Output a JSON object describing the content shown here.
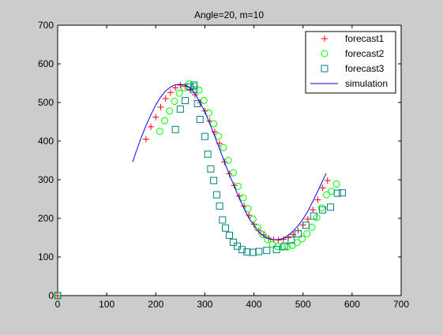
{
  "chart_data": {
    "type": "scatter",
    "title": "Angle=20, m=10",
    "xlabel": "",
    "ylabel": "",
    "xlim": [
      0,
      700
    ],
    "ylim": [
      0,
      700
    ],
    "xticks": [
      "0",
      "100",
      "200",
      "300",
      "400",
      "500",
      "600",
      "700"
    ],
    "yticks": [
      "0",
      "100",
      "200",
      "300",
      "400",
      "500",
      "600",
      "700"
    ],
    "grid": false,
    "legend_position": "top-right",
    "series": [
      {
        "name": "forecast1",
        "marker": "plus",
        "color": "#ff0000",
        "points": [
          [
            0,
            0
          ],
          [
            180,
            405
          ],
          [
            190,
            437
          ],
          [
            200,
            462
          ],
          [
            210,
            488
          ],
          [
            220,
            510
          ],
          [
            230,
            526
          ],
          [
            240,
            538
          ],
          [
            250,
            545
          ],
          [
            260,
            542
          ],
          [
            270,
            534
          ],
          [
            280,
            520
          ],
          [
            290,
            500
          ],
          [
            300,
            478
          ],
          [
            310,
            452
          ],
          [
            320,
            424
          ],
          [
            330,
            394
          ],
          [
            340,
            346
          ],
          [
            350,
            315
          ],
          [
            360,
            285
          ],
          [
            370,
            258
          ],
          [
            380,
            232
          ],
          [
            390,
            208
          ],
          [
            400,
            185
          ],
          [
            410,
            168
          ],
          [
            420,
            157
          ],
          [
            430,
            149
          ],
          [
            440,
            145
          ],
          [
            450,
            144
          ],
          [
            460,
            146
          ],
          [
            470,
            150
          ],
          [
            480,
            158
          ],
          [
            490,
            168
          ],
          [
            500,
            183
          ],
          [
            510,
            198
          ],
          [
            520,
            222
          ],
          [
            530,
            248
          ],
          [
            540,
            279
          ],
          [
            550,
            298
          ]
        ]
      },
      {
        "name": "forecast2",
        "marker": "circle",
        "color": "#00ff00",
        "points": [
          [
            0,
            0
          ],
          [
            208,
            425
          ],
          [
            218,
            453
          ],
          [
            228,
            478
          ],
          [
            238,
            503
          ],
          [
            248,
            524
          ],
          [
            258,
            538
          ],
          [
            268,
            548
          ],
          [
            278,
            542
          ],
          [
            288,
            532
          ],
          [
            298,
            505
          ],
          [
            308,
            473
          ],
          [
            318,
            445
          ],
          [
            328,
            413
          ],
          [
            338,
            383
          ],
          [
            348,
            350
          ],
          [
            358,
            318
          ],
          [
            368,
            283
          ],
          [
            378,
            253
          ],
          [
            388,
            225
          ],
          [
            398,
            198
          ],
          [
            408,
            176
          ],
          [
            418,
            158
          ],
          [
            428,
            145
          ],
          [
            438,
            132
          ],
          [
            448,
            127
          ],
          [
            458,
            125
          ],
          [
            468,
            126
          ],
          [
            478,
            130
          ],
          [
            488,
            137
          ],
          [
            498,
            147
          ],
          [
            508,
            160
          ],
          [
            518,
            177
          ],
          [
            528,
            202
          ],
          [
            538,
            227
          ],
          [
            548,
            261
          ],
          [
            558,
            270
          ],
          [
            568,
            289
          ]
        ]
      },
      {
        "name": "forecast3",
        "marker": "square",
        "color": "#008080",
        "points": [
          [
            0,
            0
          ],
          [
            240,
            430
          ],
          [
            250,
            483
          ],
          [
            260,
            505
          ],
          [
            270,
            540
          ],
          [
            278,
            545
          ],
          [
            278,
            533
          ],
          [
            285,
            497
          ],
          [
            290,
            456
          ],
          [
            300,
            412
          ],
          [
            306,
            366
          ],
          [
            312,
            328
          ],
          [
            318,
            298
          ],
          [
            324,
            261
          ],
          [
            330,
            232
          ],
          [
            336,
            196
          ],
          [
            342,
            175
          ],
          [
            350,
            156
          ],
          [
            358,
            138
          ],
          [
            366,
            128
          ],
          [
            376,
            119
          ],
          [
            386,
            113
          ],
          [
            398,
            112
          ],
          [
            410,
            114
          ],
          [
            426,
            117
          ],
          [
            446,
            119
          ],
          [
            462,
            128
          ],
          [
            476,
            144
          ],
          [
            490,
            160
          ],
          [
            506,
            182
          ],
          [
            522,
            206
          ],
          [
            540,
            222
          ],
          [
            556,
            229
          ],
          [
            570,
            265
          ],
          [
            580,
            266
          ]
        ]
      },
      {
        "name": "simulation",
        "marker": "line",
        "color": "#0000ff",
        "points": [
          [
            153,
            346
          ],
          [
            160,
            373
          ],
          [
            170,
            408
          ],
          [
            180,
            440
          ],
          [
            190,
            468
          ],
          [
            200,
            494
          ],
          [
            210,
            514
          ],
          [
            220,
            530
          ],
          [
            230,
            540
          ],
          [
            240,
            546
          ],
          [
            250,
            547
          ],
          [
            260,
            545
          ],
          [
            270,
            537
          ],
          [
            280,
            523
          ],
          [
            290,
            500
          ],
          [
            300,
            476
          ],
          [
            310,
            445
          ],
          [
            320,
            413
          ],
          [
            330,
            380
          ],
          [
            340,
            346
          ],
          [
            350,
            313
          ],
          [
            360,
            283
          ],
          [
            370,
            252
          ],
          [
            380,
            225
          ],
          [
            390,
            200
          ],
          [
            400,
            182
          ],
          [
            410,
            165
          ],
          [
            420,
            154
          ],
          [
            430,
            147
          ],
          [
            440,
            145
          ],
          [
            450,
            145
          ],
          [
            460,
            148
          ],
          [
            470,
            156
          ],
          [
            480,
            167
          ],
          [
            490,
            181
          ],
          [
            500,
            198
          ],
          [
            510,
            219
          ],
          [
            520,
            244
          ],
          [
            530,
            270
          ],
          [
            540,
            297
          ],
          [
            547,
            316
          ]
        ]
      }
    ]
  }
}
